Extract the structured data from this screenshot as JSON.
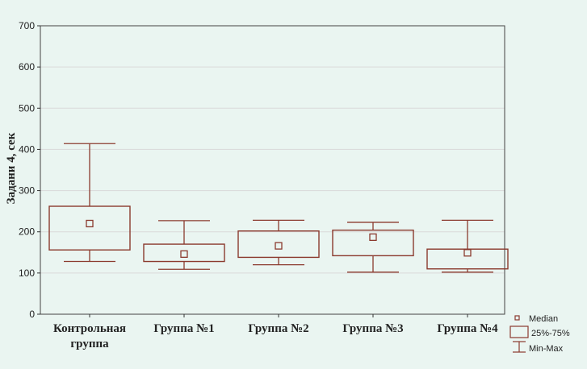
{
  "chart_data": {
    "type": "boxplot",
    "ylabel": "Задани 4, сек",
    "ylim": [
      0,
      700
    ],
    "yticks": [
      0,
      100,
      200,
      300,
      400,
      500,
      600,
      700
    ],
    "grid": true,
    "categories": [
      [
        "Контрольная",
        "группа"
      ],
      [
        "Группа №1"
      ],
      [
        "Группа №2"
      ],
      [
        "Группа №3"
      ],
      [
        "Группа №4"
      ]
    ],
    "boxes": [
      {
        "min": 128,
        "q1": 156,
        "median": 220,
        "q3": 262,
        "max": 414
      },
      {
        "min": 109,
        "q1": 128,
        "median": 146,
        "q3": 170,
        "max": 227
      },
      {
        "min": 120,
        "q1": 138,
        "median": 166,
        "q3": 202,
        "max": 228
      },
      {
        "min": 102,
        "q1": 142,
        "median": 187,
        "q3": 204,
        "max": 223
      },
      {
        "min": 102,
        "q1": 110,
        "median": 149,
        "q3": 158,
        "max": 228
      }
    ],
    "legend": {
      "position": "bottom-right",
      "items": [
        "Median",
        "25%-75%",
        "Min-Max"
      ]
    },
    "colors": {
      "box": "#8b3a2e",
      "grid": "#d9d9d9",
      "axis": "#333333"
    }
  }
}
